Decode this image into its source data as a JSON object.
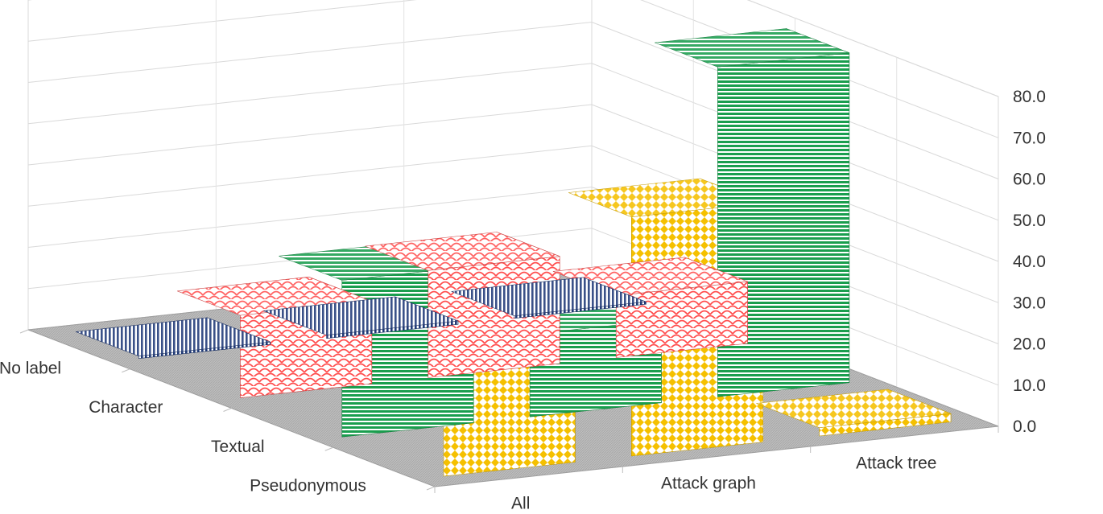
{
  "chart_data": {
    "type": "bar",
    "subtype": "3d-column",
    "title": "",
    "x_categories": [
      "All",
      "Attack graph",
      "Attack tree"
    ],
    "depth_categories": [
      "Pseudonymous",
      "Textual",
      "Character",
      "No label"
    ],
    "y_ticks": [
      "0.0",
      "10.0",
      "20.0",
      "30.0",
      "40.0",
      "50.0",
      "60.0",
      "70.0",
      "80.0"
    ],
    "ylim": [
      0,
      80
    ],
    "grid": true,
    "legend": "none",
    "series": [
      {
        "values": [
          33,
          58,
          2
        ],
        "color": "#f5c000",
        "pattern": "diamond-dots"
      },
      {
        "values": [
          38,
          20,
          80
        ],
        "color": "#1a9e4e",
        "pattern": "horizontal-stripes"
      },
      {
        "values": [
          20,
          26,
          15
        ],
        "color": "#ff4d4d",
        "pattern": "scales"
      },
      {
        "values": [
          0.6,
          0.8,
          0.6
        ],
        "color": "#1f3a78",
        "pattern": "vertical-stripes"
      }
    ],
    "floor_color": "#b3b3b3"
  }
}
